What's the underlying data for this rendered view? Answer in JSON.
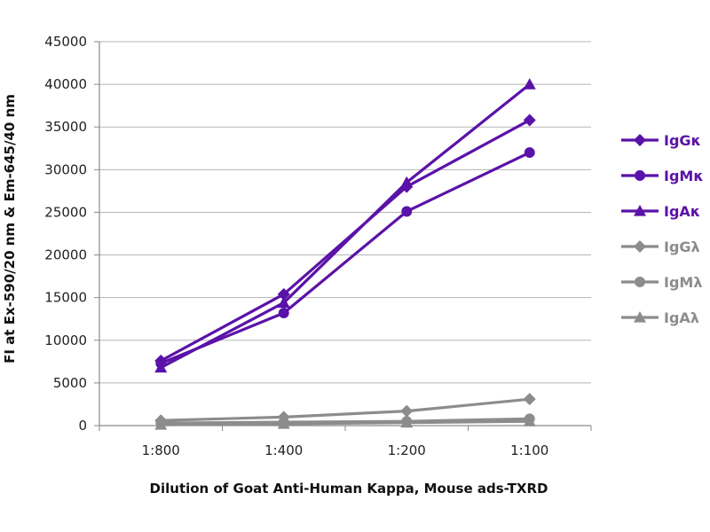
{
  "chart_data": {
    "type": "line",
    "title": "",
    "xlabel": "Dilution of Goat Anti-Human Kappa, Mouse ads-TXRD",
    "ylabel": "FI at Ex-590/20 nm & Em-645/40 nm",
    "categories": [
      "1:800",
      "1:400",
      "1:200",
      "1:100"
    ],
    "ylim": [
      0,
      45000
    ],
    "yticks": [
      0,
      5000,
      10000,
      15000,
      20000,
      25000,
      30000,
      35000,
      40000,
      45000
    ],
    "grid": "horizontal",
    "legend_position": "right",
    "series": [
      {
        "name": "IgGκ",
        "marker": "diamond",
        "color": "#5b12a8",
        "values": [
          7600,
          15400,
          28000,
          35800
        ]
      },
      {
        "name": "IgMκ",
        "marker": "circle",
        "color": "#5b12a8",
        "values": [
          7300,
          13200,
          25100,
          32000
        ]
      },
      {
        "name": "IgAκ",
        "marker": "triangle",
        "color": "#5b12a8",
        "values": [
          6800,
          14400,
          28500,
          40000
        ]
      },
      {
        "name": "IgGλ",
        "marker": "diamond",
        "color": "#8c8c8c",
        "values": [
          600,
          1000,
          1700,
          3100
        ]
      },
      {
        "name": "IgMλ",
        "marker": "circle",
        "color": "#8c8c8c",
        "values": [
          300,
          400,
          500,
          800
        ]
      },
      {
        "name": "IgAλ",
        "marker": "triangle",
        "color": "#8c8c8c",
        "values": [
          100,
          200,
          350,
          500
        ]
      }
    ]
  }
}
